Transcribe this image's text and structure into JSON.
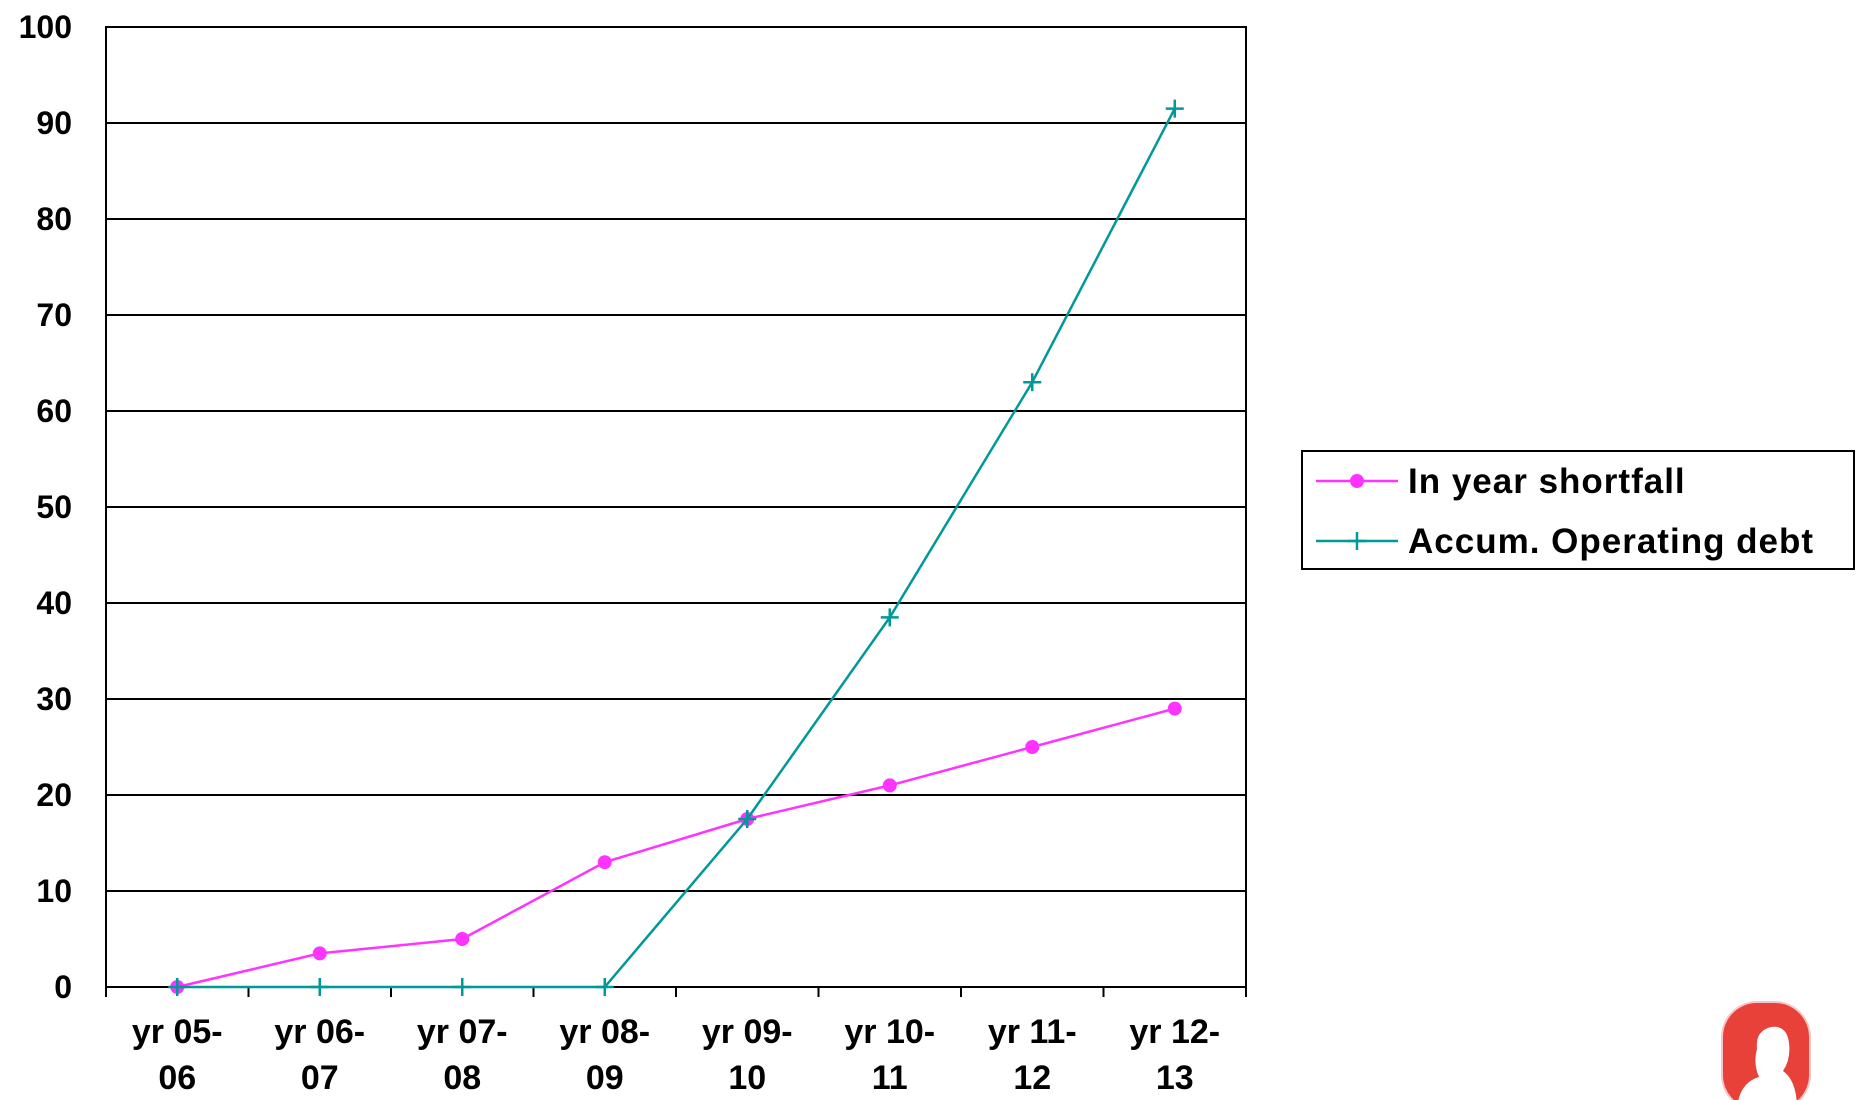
{
  "chart_data": {
    "type": "line",
    "categories": [
      "yr 05-06",
      "yr 06-07",
      "yr 07-08",
      "yr 08-09",
      "yr 09-10",
      "yr 10-11",
      "yr 11-12",
      "yr 12-13"
    ],
    "category_lines": [
      [
        "yr 05-",
        "06"
      ],
      [
        "yr 06-",
        "07"
      ],
      [
        "yr 07-",
        "08"
      ],
      [
        "yr 08-",
        "09"
      ],
      [
        "yr 09-",
        "10"
      ],
      [
        "yr 10-",
        "11"
      ],
      [
        "yr 11-",
        "12"
      ],
      [
        "yr 12-",
        "13"
      ]
    ],
    "series": [
      {
        "name": "In year shortfall",
        "values": [
          0,
          3.5,
          5,
          13,
          17.5,
          21,
          25,
          29
        ],
        "color": "#ff33ff",
        "marker": "circle"
      },
      {
        "name": "Accum. Operating debt",
        "values": [
          0,
          0,
          0,
          0,
          17.5,
          38.5,
          63,
          91.5
        ],
        "color": "#009999",
        "marker": "plus"
      }
    ],
    "ylim": [
      0,
      100
    ],
    "yticks": [
      0,
      10,
      20,
      30,
      40,
      50,
      60,
      70,
      80,
      90,
      100
    ],
    "grid": true,
    "legend_position": "right"
  },
  "logo": {
    "icon": "silhouette-portrait-logo-icon",
    "color": "#e8413a"
  }
}
